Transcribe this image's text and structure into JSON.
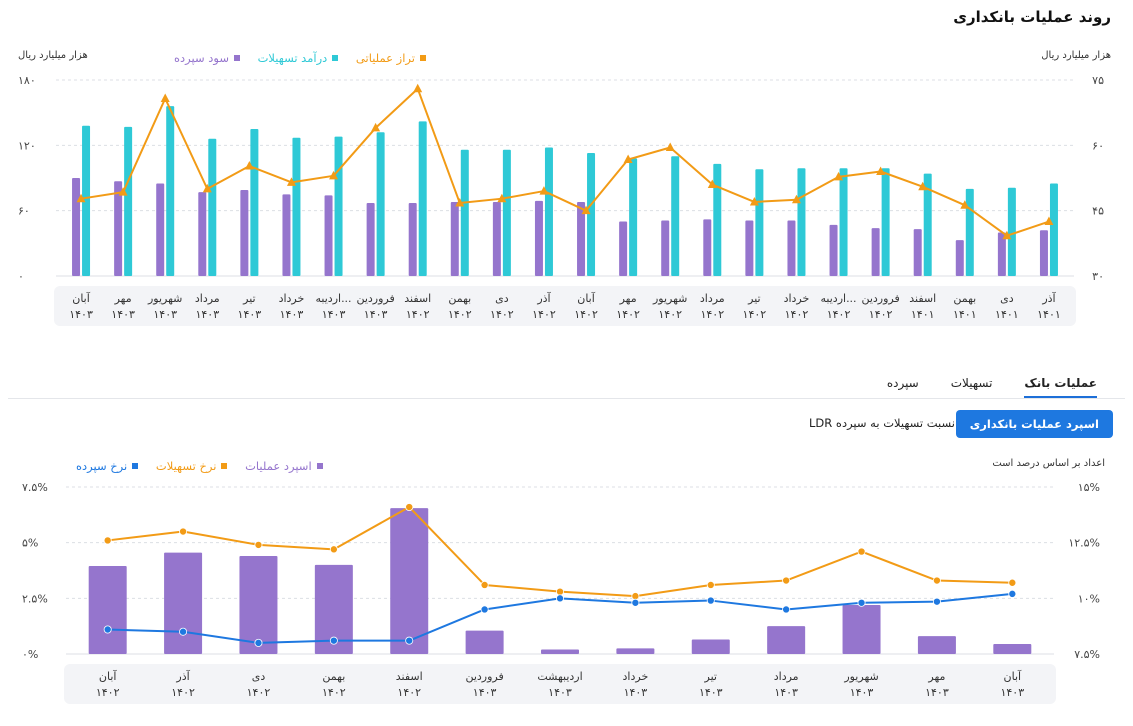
{
  "page_title": "روند عملیات بانکداری",
  "chart1": {
    "unit_left": "هزار میلیارد ریال",
    "unit_right": "هزار میلیارد ریال",
    "legend": [
      {
        "label": "تراز عملیاتی",
        "color": "#f29b16"
      },
      {
        "label": "درآمد تسهیلات",
        "color": "#2ec9d6"
      },
      {
        "label": "سود سپرده",
        "color": "#9575cd"
      }
    ]
  },
  "tabs": [
    {
      "label": "سپرده",
      "active": false
    },
    {
      "label": "تسهیلات",
      "active": false
    },
    {
      "label": "عملیات بانک",
      "active": true
    }
  ],
  "buttons": {
    "primary": "اسپرد عملیات بانکداری",
    "secondary": "نسبت تسهیلات به سپرده LDR"
  },
  "chart2": {
    "unit_right": "اعداد بر اساس درصد است",
    "legend": [
      {
        "label": "اسپرد عملیات",
        "color": "#9575cd"
      },
      {
        "label": "نرخ تسهیلات",
        "color": "#f29b16"
      },
      {
        "label": "نرخ سپرده",
        "color": "#1e78e0"
      }
    ]
  },
  "chart_data": [
    {
      "type": "bar",
      "categories": [
        [
          "آذر",
          "۱۴۰۱"
        ],
        [
          "دی",
          "۱۴۰۱"
        ],
        [
          "بهمن",
          "۱۴۰۱"
        ],
        [
          "اسفند",
          "۱۴۰۱"
        ],
        [
          "فروردین",
          "۱۴۰۲"
        ],
        [
          "اردیبه...",
          "۱۴۰۲"
        ],
        [
          "خرداد",
          "۱۴۰۲"
        ],
        [
          "تیر",
          "۱۴۰۲"
        ],
        [
          "مرداد",
          "۱۴۰۲"
        ],
        [
          "شهریور",
          "۱۴۰۲"
        ],
        [
          "مهر",
          "۱۴۰۲"
        ],
        [
          "آبان",
          "۱۴۰۲"
        ],
        [
          "آذر",
          "۱۴۰۲"
        ],
        [
          "دی",
          "۱۴۰۲"
        ],
        [
          "بهمن",
          "۱۴۰۲"
        ],
        [
          "اسفند",
          "۱۴۰۲"
        ],
        [
          "فروردین",
          "۱۴۰۳"
        ],
        [
          "اردیبه...",
          "۱۴۰۳"
        ],
        [
          "خرداد",
          "۱۴۰۳"
        ],
        [
          "تیر",
          "۱۴۰۳"
        ],
        [
          "مرداد",
          "۱۴۰۳"
        ],
        [
          "شهریور",
          "۱۴۰۳"
        ],
        [
          "مهر",
          "۱۴۰۳"
        ],
        [
          "آبان",
          "۱۴۰۳"
        ]
      ],
      "order": "rtl",
      "yleft": {
        "ticks": [
          "۰",
          "۶۰",
          "۱۲۰",
          "۱۸۰"
        ],
        "min": 0,
        "max": 180
      },
      "yright": {
        "ticks": [
          "۳۰",
          "۴۵",
          "۶۰",
          "۷۵"
        ],
        "min": 30,
        "max": 75
      },
      "series": [
        {
          "name": "سود سپرده",
          "type": "bar",
          "axis": "left",
          "color": "#9575cd",
          "values": [
            42,
            40,
            33,
            43,
            44,
            47,
            51,
            51,
            52,
            51,
            50,
            68,
            69,
            68,
            68,
            67,
            67,
            74,
            75,
            79,
            77,
            85,
            87,
            90
          ]
        },
        {
          "name": "درآمد تسهیلات",
          "type": "bar",
          "axis": "left",
          "color": "#2ec9d6",
          "values": [
            85,
            81,
            80,
            94,
            99,
            99,
            99,
            98,
            103,
            110,
            108,
            113,
            118,
            116,
            116,
            142,
            132,
            128,
            127,
            135,
            126,
            156,
            137,
            138
          ]
        },
        {
          "name": "تراز عملیاتی",
          "type": "line",
          "axis": "left",
          "color": "#f29b16",
          "values": [
            50,
            37,
            65,
            82,
            96,
            91,
            70,
            68,
            84,
            118,
            107,
            60,
            78,
            71,
            67,
            172,
            136,
            92,
            86,
            101,
            80,
            163,
            77,
            71
          ]
        }
      ]
    },
    {
      "type": "bar",
      "categories": [
        [
          "آبان",
          "۱۴۰۲"
        ],
        [
          "آذر",
          "۱۴۰۲"
        ],
        [
          "دی",
          "۱۴۰۲"
        ],
        [
          "بهمن",
          "۱۴۰۲"
        ],
        [
          "اسفند",
          "۱۴۰۲"
        ],
        [
          "فروردین",
          "۱۴۰۳"
        ],
        [
          "اردیبهشت",
          "۱۴۰۳"
        ],
        [
          "خرداد",
          "۱۴۰۳"
        ],
        [
          "تیر",
          "۱۴۰۳"
        ],
        [
          "مرداد",
          "۱۴۰۳"
        ],
        [
          "شهریور",
          "۱۴۰۳"
        ],
        [
          "مهر",
          "۱۴۰۳"
        ],
        [
          "آبان",
          "۱۴۰۳"
        ]
      ],
      "order": "ltr",
      "yleft": {
        "ticks": [
          "۰%",
          "۲.۵%",
          "۵%",
          "۷.۵%"
        ],
        "min": 0,
        "max": 7.5
      },
      "yright": {
        "ticks": [
          "۷.۵%",
          "۱۰%",
          "۱۲.۵%",
          "۱۵%"
        ],
        "min": 7.5,
        "max": 15
      },
      "series": [
        {
          "name": "اسپرد عملیات",
          "type": "bar",
          "axis": "left",
          "color": "#9575cd",
          "values": [
            3.95,
            4.55,
            4.4,
            4.0,
            6.55,
            1.05,
            0.2,
            0.25,
            0.65,
            1.25,
            2.2,
            0.8,
            0.45
          ]
        },
        {
          "name": "نرخ تسهیلات",
          "type": "line",
          "axis": "right",
          "color": "#f29b16",
          "values": [
            12.6,
            13.0,
            12.4,
            12.2,
            14.1,
            10.6,
            10.3,
            10.1,
            10.6,
            10.8,
            12.1,
            10.8,
            10.7
          ]
        },
        {
          "name": "نرخ سپرده",
          "type": "line",
          "axis": "right",
          "color": "#1e78e0",
          "values": [
            8.6,
            8.5,
            8.0,
            8.1,
            8.1,
            9.5,
            10.0,
            9.8,
            9.9,
            9.5,
            9.8,
            9.85,
            10.2
          ]
        }
      ]
    }
  ]
}
